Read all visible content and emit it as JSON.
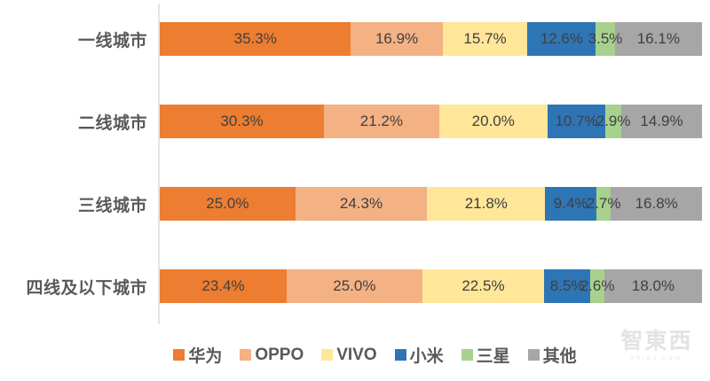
{
  "chart_data": {
    "type": "bar",
    "orientation": "horizontal",
    "stacked": true,
    "unit": "%",
    "categories": [
      "一线城市",
      "二线城市",
      "三线城市",
      "四线及以下城市"
    ],
    "series": [
      {
        "name": "华为",
        "color": "#ED7D31",
        "values": [
          35.3,
          30.3,
          25.0,
          23.4
        ]
      },
      {
        "name": "OPPO",
        "color": "#F4B183",
        "values": [
          16.9,
          21.2,
          24.3,
          25.0
        ]
      },
      {
        "name": "VIVO",
        "color": "#FFE699",
        "values": [
          15.7,
          20.0,
          21.8,
          22.5
        ]
      },
      {
        "name": "小米",
        "color": "#2E75B6",
        "values": [
          12.6,
          10.7,
          9.4,
          8.5
        ]
      },
      {
        "name": "三星",
        "color": "#A9D18E",
        "values": [
          3.5,
          2.9,
          2.7,
          2.6
        ]
      },
      {
        "name": "其他",
        "color": "#A6A6A6",
        "values": [
          16.1,
          14.9,
          16.8,
          18.0
        ]
      }
    ],
    "label_format": "one_decimal_percent",
    "legend_position": "bottom",
    "xlim": [
      0,
      100
    ],
    "grid": false,
    "title": "",
    "xlabel": "",
    "ylabel": ""
  },
  "colors": {
    "background": "#FFFFFF",
    "axis_line": "#E4E4E4",
    "category_label": "#595959",
    "data_label": "#404040",
    "legend_label": "#595959"
  },
  "watermark": {
    "title": "智東西",
    "subtitle": "zhidx.com"
  }
}
